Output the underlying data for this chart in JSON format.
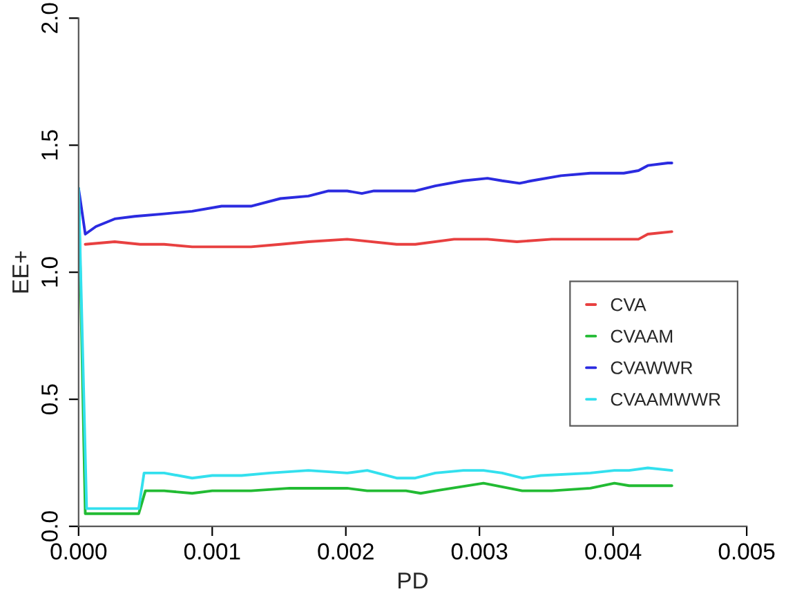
{
  "chart_data": {
    "type": "line",
    "xlabel": "PD",
    "ylabel": "EE+",
    "xlim": [
      0,
      0.005
    ],
    "ylim": [
      0,
      2
    ],
    "xticks": [
      {
        "value": 0,
        "label": "0.000"
      },
      0.001,
      0.002,
      0.003,
      0.004,
      0.005
    ],
    "yticks": [
      {
        "value": 0,
        "label": "0.0"
      },
      0.5,
      {
        "value": 1,
        "label": "1.0"
      },
      1.5,
      {
        "value": 2,
        "label": "2.0"
      }
    ],
    "grid": false,
    "legend": "right",
    "line_style": "solid",
    "marker": "none",
    "series": [
      {
        "name": "CVA",
        "color": "#e84040",
        "x": [
          5e-05,
          0.00027,
          0.00046,
          0.00064,
          0.00085,
          0.00107,
          0.00129,
          0.00151,
          0.00172,
          0.00201,
          0.00238,
          0.00252,
          0.00281,
          0.00306,
          0.00328,
          0.00354,
          0.0039,
          0.00419,
          0.00426,
          0.00444
        ],
        "values": [
          1.11,
          1.12,
          1.11,
          1.11,
          1.1,
          1.1,
          1.1,
          1.11,
          1.12,
          1.13,
          1.11,
          1.11,
          1.13,
          1.13,
          1.12,
          1.13,
          1.13,
          1.13,
          1.15,
          1.16
        ]
      },
      {
        "name": "CVAAM",
        "color": "#22bb33",
        "x": [
          0,
          5e-05,
          0.00045,
          0.0005,
          0.00064,
          0.00085,
          0.001,
          0.00129,
          0.00158,
          0.00172,
          0.00201,
          0.00216,
          0.00245,
          0.00256,
          0.00267,
          0.00303,
          0.00332,
          0.00354,
          0.00383,
          0.00401,
          0.00412,
          0.00444
        ],
        "values": [
          1.33,
          0.05,
          0.05,
          0.14,
          0.14,
          0.13,
          0.14,
          0.14,
          0.15,
          0.15,
          0.15,
          0.14,
          0.14,
          0.13,
          0.14,
          0.17,
          0.14,
          0.14,
          0.15,
          0.17,
          0.16,
          0.16
        ]
      },
      {
        "name": "CVAWWR",
        "color": "#2b2be0",
        "x": [
          0,
          5e-05,
          0.00013,
          0.00027,
          0.00042,
          0.00064,
          0.00085,
          0.00107,
          0.00129,
          0.00151,
          0.00172,
          0.00187,
          0.00201,
          0.00212,
          0.00221,
          0.00238,
          0.00252,
          0.00267,
          0.00288,
          0.00306,
          0.00317,
          0.0033,
          0.00339,
          0.00361,
          0.00383,
          0.00408,
          0.00419,
          0.00426,
          0.00441,
          0.00444
        ],
        "values": [
          1.33,
          1.15,
          1.18,
          1.21,
          1.22,
          1.23,
          1.24,
          1.26,
          1.26,
          1.29,
          1.3,
          1.32,
          1.32,
          1.31,
          1.32,
          1.32,
          1.32,
          1.34,
          1.36,
          1.37,
          1.36,
          1.35,
          1.36,
          1.38,
          1.39,
          1.39,
          1.4,
          1.42,
          1.43,
          1.43
        ]
      },
      {
        "name": "CVAAMWWR",
        "color": "#33e0ee",
        "x": [
          0,
          6e-05,
          0.00045,
          0.00049,
          0.00064,
          0.00085,
          0.001,
          0.00122,
          0.00143,
          0.00172,
          0.00201,
          0.00216,
          0.00238,
          0.00252,
          0.00267,
          0.00288,
          0.00303,
          0.00317,
          0.00332,
          0.00346,
          0.00383,
          0.00401,
          0.00412,
          0.00426,
          0.00444
        ],
        "values": [
          1.33,
          0.07,
          0.07,
          0.21,
          0.21,
          0.19,
          0.2,
          0.2,
          0.21,
          0.22,
          0.21,
          0.22,
          0.19,
          0.19,
          0.21,
          0.22,
          0.22,
          0.21,
          0.19,
          0.2,
          0.21,
          0.22,
          0.22,
          0.23,
          0.22
        ]
      }
    ]
  }
}
